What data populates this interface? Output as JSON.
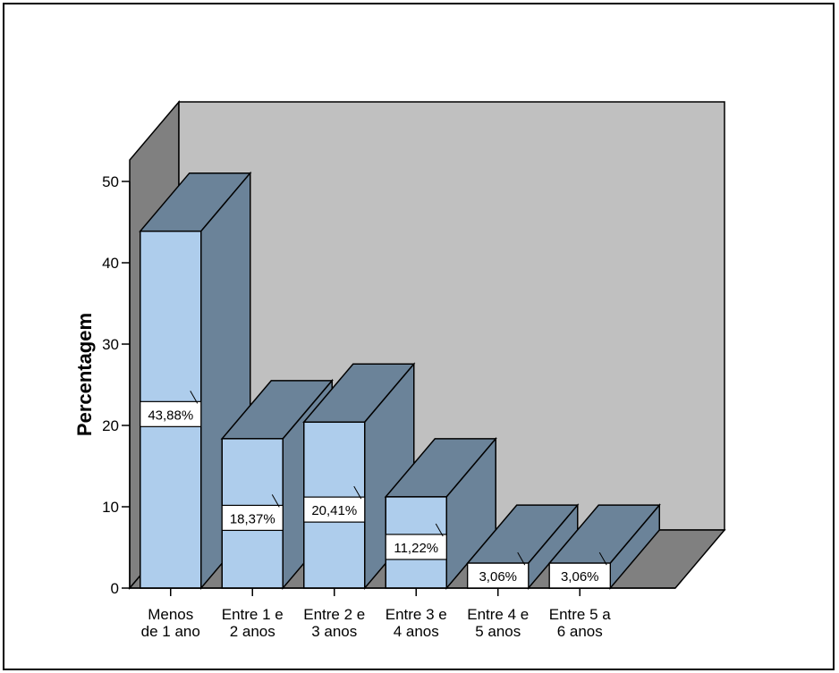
{
  "chart_data": {
    "type": "bar",
    "categories": [
      [
        "Menos",
        "de 1 ano"
      ],
      [
        "Entre 1 e",
        "2 anos"
      ],
      [
        "Entre 2 e",
        "3 anos"
      ],
      [
        "Entre 3 e",
        "4 anos"
      ],
      [
        "Entre 4 e",
        "5 anos"
      ],
      [
        "Entre 5 a",
        "6 anos"
      ]
    ],
    "values": [
      43.88,
      18.37,
      20.41,
      11.22,
      3.06,
      3.06
    ],
    "data_labels": [
      "43,88%",
      "18,37%",
      "20,41%",
      "11,22%",
      "3,06%",
      "3,06%"
    ],
    "ylabel": "Percentagem",
    "xlabel": "",
    "title": "",
    "ylim": [
      0,
      50
    ],
    "yticks": [
      0,
      10,
      20,
      30,
      40,
      50
    ],
    "three_d": true,
    "grid": false,
    "colors": {
      "bar_front": "#aecdec",
      "bar_side": "#6b8399",
      "bar_top": "#6b8399",
      "back_wall": "#c0c0c0",
      "side_wall": "#808080",
      "floor": "#808080",
      "page_bg": "#ffffff"
    }
  }
}
